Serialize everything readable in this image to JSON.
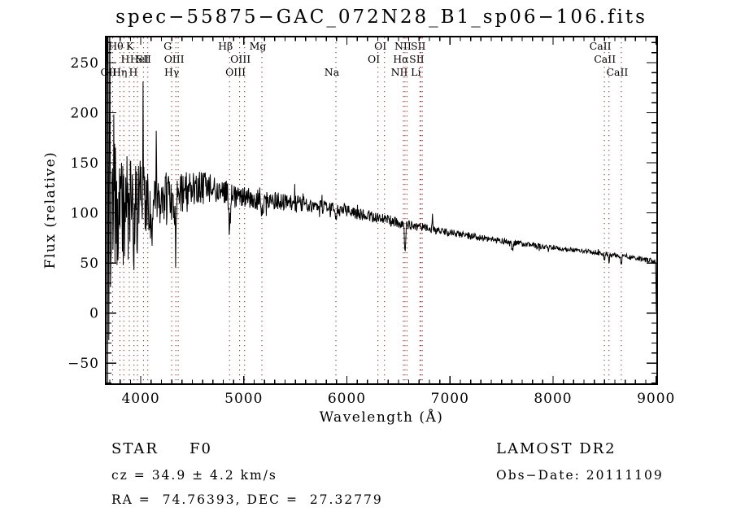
{
  "title": "spec−55875−GAC_072N28_B1_sp06−106.fits",
  "chart_data": {
    "type": "line",
    "title": "spec−55875−GAC_072N28_B1_sp06−106.fits",
    "xlabel": "Wavelength (Å)",
    "ylabel": "Flux (relative)",
    "xlim": [
      3660,
      9010
    ],
    "ylim": [
      -71,
      276
    ],
    "grid": false,
    "legend": "none",
    "x_major_ticks": [
      4000,
      5000,
      6000,
      7000,
      8000,
      9000
    ],
    "x_minor_step": 100,
    "y_major_ticks": [
      -50,
      0,
      50,
      100,
      150,
      200,
      250
    ],
    "y_minor_step": 10,
    "line_color": "#000000",
    "marker_line_color": "#993333",
    "noise_seed": 20111109,
    "sample_step": 4,
    "continuum": [
      [
        3662,
        110
      ],
      [
        3700,
        112
      ],
      [
        3760,
        116
      ],
      [
        3800,
        118
      ],
      [
        3860,
        116
      ],
      [
        3920,
        116
      ],
      [
        4000,
        117
      ],
      [
        4080,
        116
      ],
      [
        4160,
        115
      ],
      [
        4240,
        115
      ],
      [
        4320,
        116
      ],
      [
        4400,
        119
      ],
      [
        4480,
        122
      ],
      [
        4560,
        125
      ],
      [
        4640,
        126
      ],
      [
        4700,
        126
      ],
      [
        4760,
        123
      ],
      [
        4820,
        121
      ],
      [
        4880,
        118
      ],
      [
        4940,
        116
      ],
      [
        5000,
        115
      ],
      [
        5100,
        114
      ],
      [
        5200,
        113
      ],
      [
        5300,
        112
      ],
      [
        5400,
        111
      ],
      [
        5500,
        110
      ],
      [
        5600,
        108
      ],
      [
        5700,
        107
      ],
      [
        5800,
        105
      ],
      [
        5900,
        104
      ],
      [
        6000,
        102
      ],
      [
        6100,
        99
      ],
      [
        6200,
        97
      ],
      [
        6300,
        95
      ],
      [
        6400,
        93
      ],
      [
        6500,
        90
      ],
      [
        6600,
        88
      ],
      [
        6700,
        86
      ],
      [
        6800,
        84
      ],
      [
        6900,
        82
      ],
      [
        7000,
        80
      ],
      [
        7100,
        79
      ],
      [
        7200,
        77
      ],
      [
        7300,
        75
      ],
      [
        7400,
        74
      ],
      [
        7500,
        72
      ],
      [
        7600,
        71
      ],
      [
        7700,
        69
      ],
      [
        7800,
        68
      ],
      [
        7900,
        66
      ],
      [
        8000,
        65
      ],
      [
        8100,
        64
      ],
      [
        8200,
        63
      ],
      [
        8300,
        62
      ],
      [
        8400,
        61
      ],
      [
        8500,
        59
      ],
      [
        8600,
        58
      ],
      [
        8700,
        56
      ],
      [
        8800,
        55
      ],
      [
        8900,
        53
      ],
      [
        9010,
        52
      ]
    ],
    "noise_sigma": [
      [
        3662,
        270
      ],
      [
        3698,
        270
      ],
      [
        3706,
        120
      ],
      [
        3740,
        85
      ],
      [
        3800,
        58
      ],
      [
        3860,
        50
      ],
      [
        3920,
        44
      ],
      [
        4000,
        38
      ],
      [
        4100,
        34
      ],
      [
        4200,
        30
      ],
      [
        4300,
        26
      ],
      [
        4400,
        22
      ],
      [
        4500,
        18
      ],
      [
        4600,
        16
      ],
      [
        4800,
        13
      ],
      [
        5000,
        11
      ],
      [
        5200,
        9.5
      ],
      [
        5400,
        8.5
      ],
      [
        5600,
        7.5
      ],
      [
        5800,
        7
      ],
      [
        6000,
        6
      ],
      [
        6300,
        5.2
      ],
      [
        6600,
        4.6
      ],
      [
        7000,
        3.8
      ],
      [
        7400,
        3.2
      ],
      [
        7800,
        2.8
      ],
      [
        8200,
        2.4
      ],
      [
        8600,
        2.3
      ],
      [
        9010,
        2.5
      ]
    ],
    "absorption_features": [
      {
        "wavelength": 3798,
        "depth": 22,
        "width": 5
      },
      {
        "wavelength": 3835,
        "depth": 28,
        "width": 5
      },
      {
        "wavelength": 3889,
        "depth": 32,
        "width": 5
      },
      {
        "wavelength": 3934,
        "depth": 55,
        "width": 5
      },
      {
        "wavelength": 3968,
        "depth": 48,
        "width": 5
      },
      {
        "wavelength": 4102,
        "depth": 46,
        "width": 7
      },
      {
        "wavelength": 4340,
        "depth": 44,
        "width": 7
      },
      {
        "wavelength": 4861,
        "depth": 40,
        "width": 7
      },
      {
        "wavelength": 5175,
        "depth": 14,
        "width": 9
      },
      {
        "wavelength": 5893,
        "depth": 13,
        "width": 6
      },
      {
        "wavelength": 6563,
        "depth": 26,
        "width": 6
      },
      {
        "wavelength": 7605,
        "depth": 7,
        "width": 9
      },
      {
        "wavelength": 8498,
        "depth": 7,
        "width": 4
      },
      {
        "wavelength": 8542,
        "depth": 9,
        "width": 4
      },
      {
        "wavelength": 8662,
        "depth": 9,
        "width": 4
      },
      {
        "wavelength": 9003,
        "depth": 52,
        "width": 4
      }
    ],
    "emission_features": [
      {
        "wavelength": 4022,
        "height": 80,
        "width": 3
      },
      {
        "wavelength": 4150,
        "height": 55,
        "width": 3
      },
      {
        "wavelength": 5577,
        "height": 10,
        "width": 3
      },
      {
        "wavelength": 6830,
        "height": 13,
        "width": 3
      }
    ],
    "line_markers": [
      {
        "label": "Hθ",
        "wavelength": 3798,
        "row": 1
      },
      {
        "label": "K",
        "wavelength": 3934,
        "row": 1
      },
      {
        "label": "G",
        "wavelength": 4300,
        "row": 1
      },
      {
        "label": "Hβ",
        "wavelength": 4861,
        "row": 1
      },
      {
        "label": "Mg",
        "wavelength": 5175,
        "row": 1
      },
      {
        "label": "OI",
        "wavelength": 6364,
        "row": 1
      },
      {
        "label": "NII",
        "wavelength": 6583,
        "row": 1
      },
      {
        "label": "SII",
        "wavelength": 6731,
        "row": 1
      },
      {
        "label": "CaII",
        "wavelength": 8498,
        "row": 1
      },
      {
        "label": "H",
        "wavelength": 3889,
        "row": 2
      },
      {
        "label": "HeI",
        "wavelength": 4026,
        "row": 2
      },
      {
        "label": "SII",
        "wavelength": 4068,
        "row": 2
      },
      {
        "label": "OIII",
        "wavelength": 4363,
        "row": 2
      },
      {
        "label": "OIII",
        "wavelength": 5007,
        "row": 2
      },
      {
        "label": "OI",
        "wavelength": 6300,
        "row": 2
      },
      {
        "label": "Hα",
        "wavelength": 6563,
        "row": 2
      },
      {
        "label": "SII",
        "wavelength": 6717,
        "row": 2
      },
      {
        "label": "CaII",
        "wavelength": 8542,
        "row": 2
      },
      {
        "label": "OII",
        "wavelength": 3727,
        "row": 3
      },
      {
        "label": "Hη",
        "wavelength": 3835,
        "row": 3
      },
      {
        "label": "H",
        "wavelength": 3968,
        "row": 3
      },
      {
        "label": "Hγ",
        "wavelength": 4340,
        "row": 3
      },
      {
        "label": "OIII",
        "wavelength": 4959,
        "row": 3
      },
      {
        "label": "Na",
        "wavelength": 5893,
        "row": 3
      },
      {
        "label": "NII",
        "wavelength": 6548,
        "row": 3
      },
      {
        "label": "Li",
        "wavelength": 6708,
        "row": 3
      },
      {
        "label": "CaII",
        "wavelength": 8662,
        "row": 3
      }
    ]
  },
  "annotations": {
    "class_label": "STAR",
    "subclass": "F0",
    "cz": "cz = 34.9 ± 4.2 km/s",
    "radec": "RA =  74.76393, DEC =  27.32779",
    "survey": "LAMOST DR2",
    "obs_date": "Obs−Date: 20111109"
  }
}
